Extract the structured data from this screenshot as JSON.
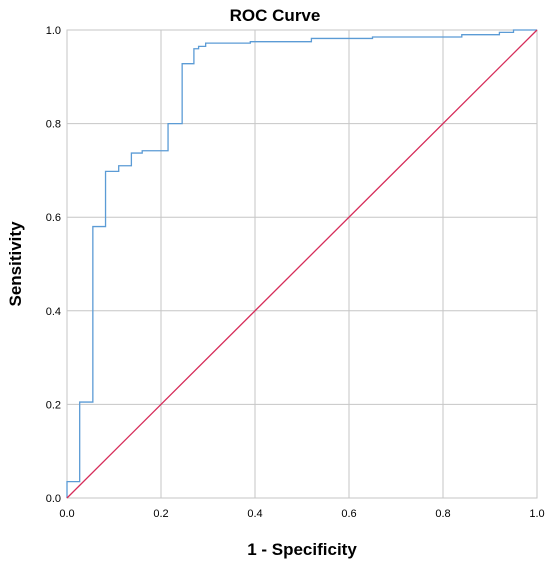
{
  "chart_data": {
    "type": "line",
    "title": "ROC Curve",
    "xlabel": "1 - Specificity",
    "ylabel": "Sensitivity",
    "xlim": [
      0.0,
      1.0
    ],
    "ylim": [
      0.0,
      1.0
    ],
    "x_ticks": [
      "0.0",
      "0.2",
      "0.4",
      "0.6",
      "0.8",
      "1.0"
    ],
    "y_ticks": [
      "0.0",
      "0.2",
      "0.4",
      "0.6",
      "0.8",
      "1.0"
    ],
    "grid": true,
    "legend": "none",
    "colors": {
      "roc_curve": "#5b9bd5",
      "reference_line": "#d62d5a",
      "grid": "#c6c6c6",
      "frame": "#c6c6c6"
    },
    "series": [
      {
        "points": [
          [
            0.0,
            0.0
          ],
          [
            0.0,
            0.035
          ],
          [
            0.027,
            0.035
          ],
          [
            0.027,
            0.205
          ],
          [
            0.055,
            0.205
          ],
          [
            0.055,
            0.208
          ],
          [
            0.055,
            0.58
          ],
          [
            0.082,
            0.58
          ],
          [
            0.082,
            0.698
          ],
          [
            0.11,
            0.698
          ],
          [
            0.11,
            0.71
          ],
          [
            0.137,
            0.71
          ],
          [
            0.137,
            0.737
          ],
          [
            0.16,
            0.737
          ],
          [
            0.16,
            0.742
          ],
          [
            0.215,
            0.742
          ],
          [
            0.215,
            0.8
          ],
          [
            0.245,
            0.8
          ],
          [
            0.245,
            0.928
          ],
          [
            0.27,
            0.928
          ],
          [
            0.27,
            0.96
          ],
          [
            0.28,
            0.96
          ],
          [
            0.28,
            0.965
          ],
          [
            0.295,
            0.965
          ],
          [
            0.295,
            0.972
          ],
          [
            0.39,
            0.972
          ],
          [
            0.39,
            0.975
          ],
          [
            0.52,
            0.975
          ],
          [
            0.52,
            0.982
          ],
          [
            0.65,
            0.982
          ],
          [
            0.65,
            0.985
          ],
          [
            0.84,
            0.985
          ],
          [
            0.84,
            0.99
          ],
          [
            0.92,
            0.99
          ],
          [
            0.92,
            0.995
          ],
          [
            0.95,
            0.995
          ],
          [
            0.95,
            1.0
          ],
          [
            1.0,
            1.0
          ]
        ]
      },
      {
        "points": [
          [
            0.0,
            0.0
          ],
          [
            1.0,
            1.0
          ]
        ]
      }
    ]
  }
}
